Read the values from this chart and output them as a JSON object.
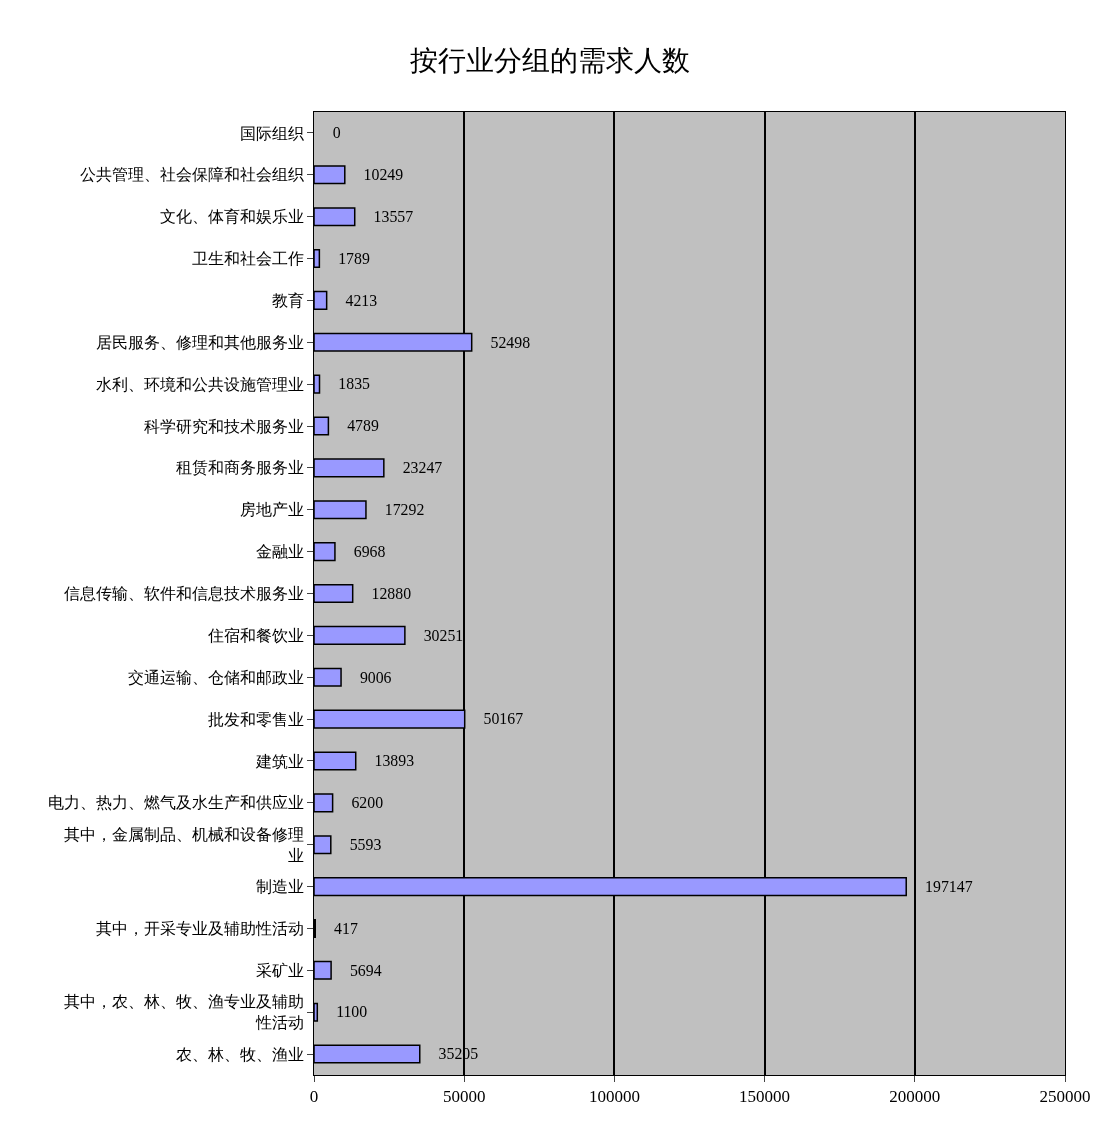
{
  "chart_data": {
    "type": "bar",
    "orientation": "horizontal",
    "title": "按行业分组的需求人数",
    "categories": [
      "国际组织",
      "公共管理、社会保障和社会组织",
      "文化、体育和娱乐业",
      "卫生和社会工作",
      "教育",
      "居民服务、修理和其他服务业",
      "水利、环境和公共设施管理业",
      "科学研究和技术服务业",
      "租赁和商务服务业",
      "房地产业",
      "金融业",
      "信息传输、软件和信息技术服务业",
      "住宿和餐饮业",
      "交通运输、仓储和邮政业",
      "批发和零售业",
      "建筑业",
      "电力、热力、燃气及水生产和供应业",
      "其中，金属制品、机械和设备修理业",
      "制造业",
      "其中，开采专业及辅助性活动",
      "采矿业",
      "其中，农、林、牧、渔专业及辅助性活动",
      "农、林、牧、渔业"
    ],
    "values": [
      0,
      10249,
      13557,
      1789,
      4213,
      52498,
      1835,
      4789,
      23247,
      17292,
      6968,
      12880,
      30251,
      9006,
      50167,
      13893,
      6200,
      5593,
      197147,
      417,
      5694,
      1100,
      35205
    ],
    "color": "#9999ff",
    "xlim": [
      0,
      250000
    ],
    "xticks": [
      0,
      50000,
      100000,
      150000,
      200000,
      250000
    ],
    "grid": "x",
    "data_labels": true,
    "legend": false
  }
}
